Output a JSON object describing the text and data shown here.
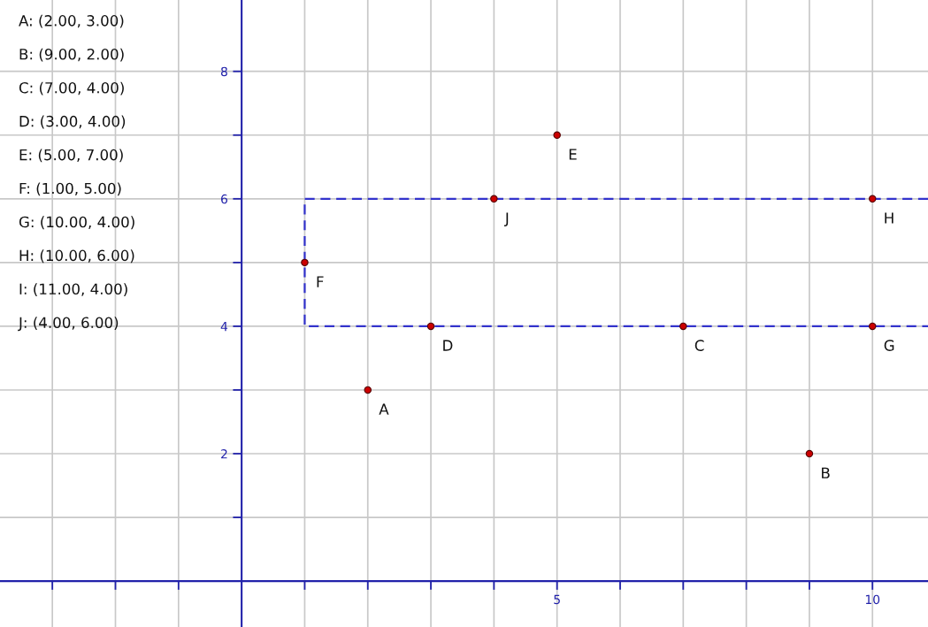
{
  "chart_data": {
    "type": "scatter",
    "series": [
      {
        "color": "#cc0000",
        "x": [
          2,
          9,
          7,
          3,
          5,
          1,
          10,
          10,
          4
        ],
        "values": [
          3,
          2,
          4,
          4,
          7,
          5,
          4,
          6,
          6
        ],
        "marker": "circle"
      },
      {
        "type": "line",
        "color": "#3333cc",
        "x": [
          10.88,
          1,
          1,
          10.88
        ],
        "values": [
          6,
          6,
          4,
          4
        ],
        "line_style": "dashed",
        "marker": "none"
      }
    ],
    "annotations": [
      "A: (2.00, 3.00)",
      "B: (9.00, 2.00)",
      "C: (7.00, 4.00)",
      "D: (3.00, 4.00)",
      "E: (5.00, 7.00)",
      "F: (1.00, 5.00)",
      "G: (10.00, 4.00)",
      "H: (10.00, 6.00)",
      "I: (11.00, 4.00)",
      "J: (4.00, 6.00)",
      {
        "text": "A",
        "x": 2,
        "y": 3
      },
      {
        "text": "B",
        "x": 9,
        "y": 2
      },
      {
        "text": "C",
        "x": 7,
        "y": 4
      },
      {
        "text": "D",
        "x": 3,
        "y": 4
      },
      {
        "text": "E",
        "x": 5,
        "y": 7
      },
      {
        "text": "F",
        "x": 1,
        "y": 5
      },
      {
        "text": "G",
        "x": 10,
        "y": 4
      },
      {
        "text": "H",
        "x": 10,
        "y": 6
      },
      {
        "text": "J",
        "x": 4,
        "y": 6
      }
    ],
    "xlim": [
      -3.83,
      10.88
    ],
    "ylim": [
      -0.72,
      9.12
    ],
    "xticks": [
      {
        "value": -3,
        "label": null
      },
      {
        "value": -2,
        "label": null
      },
      {
        "value": -1,
        "label": null
      },
      {
        "value": 1,
        "label": null
      },
      {
        "value": 2,
        "label": null
      },
      {
        "value": 3,
        "label": null
      },
      {
        "value": 4,
        "label": null
      },
      5,
      {
        "value": 6,
        "label": null
      },
      {
        "value": 7,
        "label": null
      },
      {
        "value": 8,
        "label": null
      },
      {
        "value": 9,
        "label": null
      },
      10
    ],
    "yticks": [
      {
        "value": 1,
        "label": null
      },
      2,
      {
        "value": 3,
        "label": null
      },
      4,
      {
        "value": 5,
        "label": null
      },
      6,
      {
        "value": 7,
        "label": null
      },
      8
    ],
    "grid": true
  }
}
